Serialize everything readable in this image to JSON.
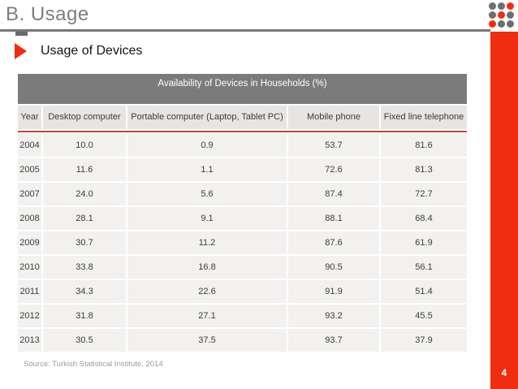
{
  "colors": {
    "accent_red": "#f02d10",
    "dark_red_line": "#bf4b2b",
    "rule_gray": "#787878",
    "title_text_gray": "#7e7e7e",
    "logo_dot_gray": "#6e6e6e",
    "table_title_bg": "#7b7b7b",
    "header_row_bg": "#e7e5e2",
    "data_row_bg": "#f2f1ef",
    "cell_text": "#3c3c3c",
    "source_text": "#9b9b9b"
  },
  "header": {
    "title": "B. Usage"
  },
  "logo": {
    "pattern": [
      [
        "gray",
        "gray",
        "red"
      ],
      [
        "gray",
        "red",
        "gray"
      ],
      [
        "red",
        "gray",
        "gray"
      ]
    ]
  },
  "section": {
    "bullet_label": "Usage of Devices"
  },
  "table": {
    "title": "Availability of Devices in Households (%)",
    "columns": [
      "Year",
      "Desktop computer",
      "Portable computer (Laptop, Tablet PC)",
      "Mobile phone",
      "Fixed line telephone"
    ],
    "rows": [
      [
        "2004",
        "10.0",
        "0.9",
        "53.7",
        "81.6"
      ],
      [
        "2005",
        "11.6",
        "1.1",
        "72.6",
        "81.3"
      ],
      [
        "2007",
        "24.0",
        "5.6",
        "87.4",
        "72.7"
      ],
      [
        "2008",
        "28.1",
        "9.1",
        "88.1",
        "68.4"
      ],
      [
        "2009",
        "30.7",
        "11.2",
        "87.6",
        "61.9"
      ],
      [
        "2010",
        "33.8",
        "16.8",
        "90.5",
        "56.1"
      ],
      [
        "2011",
        "34.3",
        "22.6",
        "91.9",
        "51.4"
      ],
      [
        "2012",
        "31.8",
        "27.1",
        "93.2",
        "45.5"
      ],
      [
        "2013",
        "30.5",
        "37.5",
        "93.7",
        "37.9"
      ]
    ]
  },
  "footer": {
    "source": "Source: Turkish Statistical Institute, 2014",
    "page_number": "4"
  }
}
